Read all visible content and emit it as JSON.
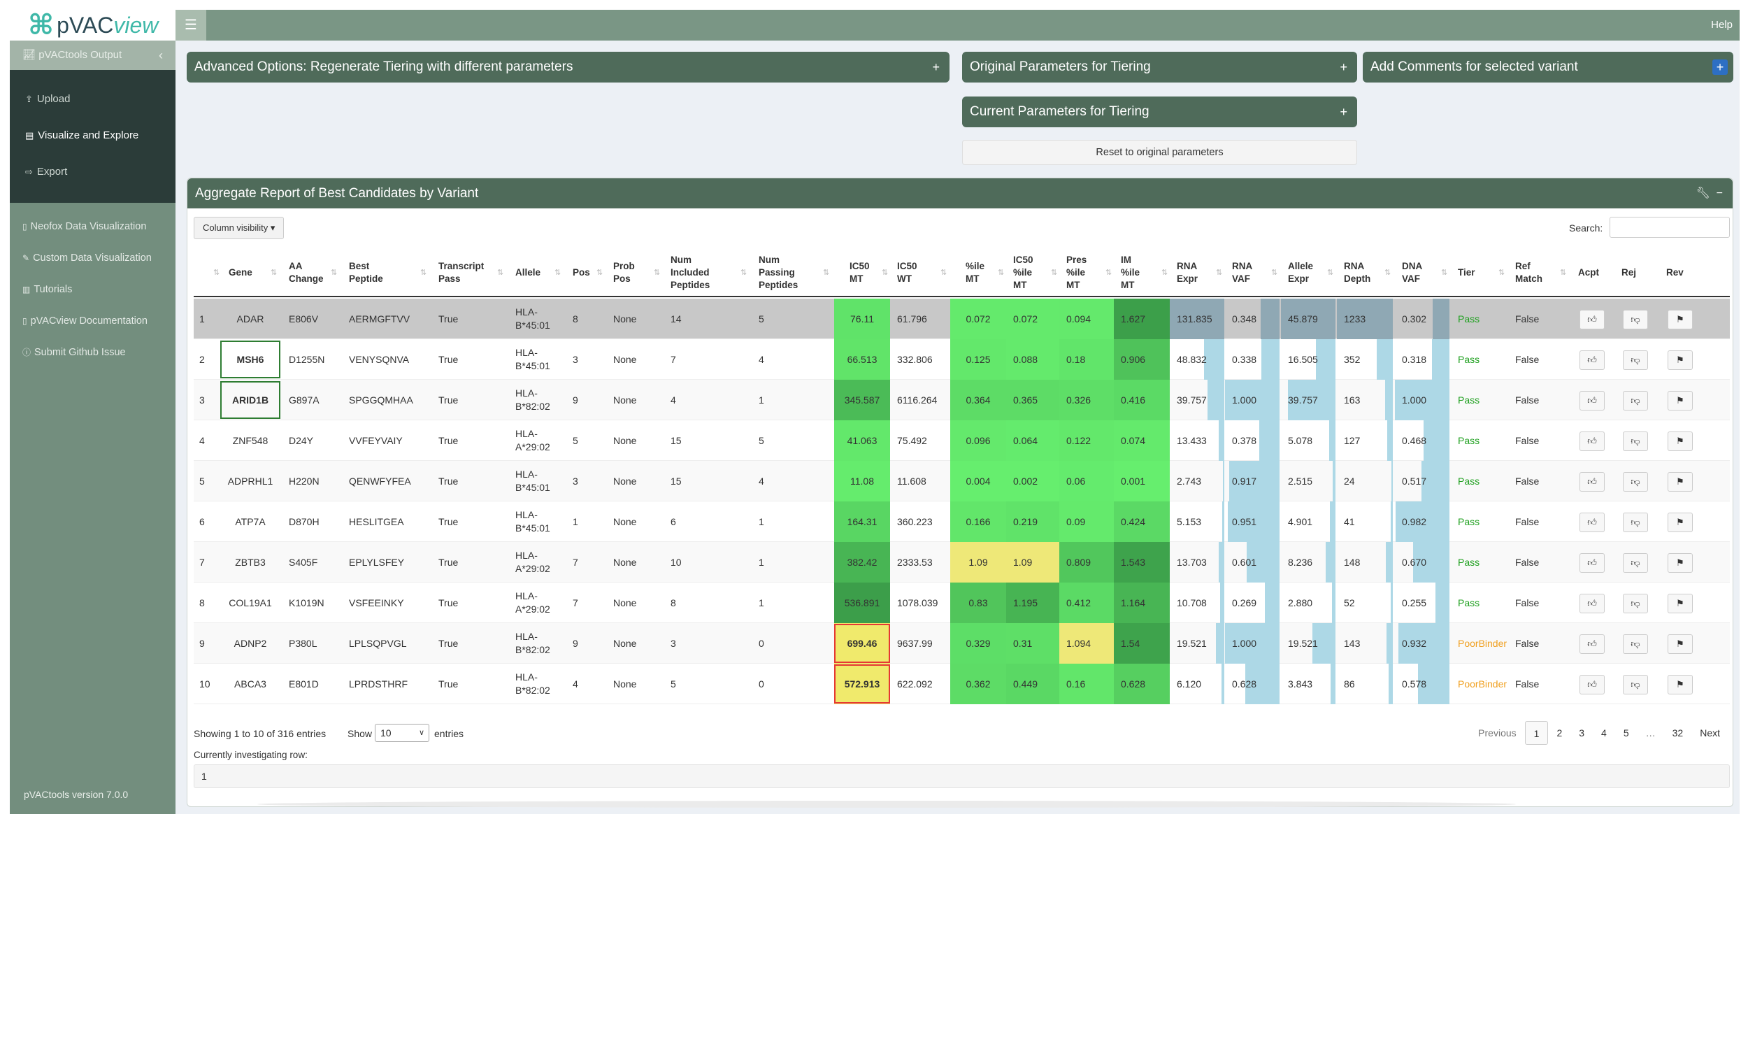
{
  "header": {
    "logo_prefix": "pVAC",
    "logo_suffix": "view",
    "help_label": "Help"
  },
  "sidebar": {
    "top_label": "pVACtools Output",
    "nav": [
      {
        "label": "Upload",
        "icon": "upload-icon"
      },
      {
        "label": "Visualize and Explore",
        "icon": "table-icon"
      },
      {
        "label": "Export",
        "icon": "export-icon"
      }
    ],
    "links": [
      {
        "label": "Neofox Data Visualization",
        "icon": "file-icon"
      },
      {
        "label": "Custom Data Visualization",
        "icon": "edit-icon"
      },
      {
        "label": "Tutorials",
        "icon": "book-icon"
      },
      {
        "label": "pVACview Documentation",
        "icon": "file-icon"
      },
      {
        "label": "Submit Github Issue",
        "icon": "question-icon"
      }
    ],
    "version": "pVACtools version 7.0.0"
  },
  "panels": {
    "advanced": "Advanced Options: Regenerate Tiering with different parameters",
    "original": "Original Parameters for Tiering",
    "comments": "Add Comments for selected variant",
    "current": "Current Parameters for Tiering",
    "reset": "Reset to original parameters"
  },
  "aggregate": {
    "title": "Aggregate Report of Best Candidates by Variant",
    "column_visibility": "Column visibility",
    "search_label": "Search:",
    "columns": [
      [
        "",
        ""
      ],
      [
        "Gene",
        ""
      ],
      [
        "AA",
        "Change"
      ],
      [
        "Best",
        "Peptide"
      ],
      [
        "Transcript",
        "Pass"
      ],
      [
        "Allele",
        ""
      ],
      [
        "Pos",
        ""
      ],
      [
        "Prob",
        "Pos"
      ],
      [
        "Num",
        "Included",
        "Peptides"
      ],
      [
        "Num",
        "Passing",
        "Peptides"
      ],
      [
        "IC50",
        "MT"
      ],
      [
        "IC50",
        "WT"
      ],
      [
        "%ile",
        "MT"
      ],
      [
        "IC50",
        "%ile",
        "MT"
      ],
      [
        "Pres",
        "%ile",
        "MT"
      ],
      [
        "IM",
        "%ile",
        "MT"
      ],
      [
        "RNA",
        "Expr"
      ],
      [
        "RNA",
        "VAF"
      ],
      [
        "Allele",
        "Expr"
      ],
      [
        "RNA",
        "Depth"
      ],
      [
        "DNA",
        "VAF"
      ],
      [
        "Tier"
      ],
      [
        "Ref",
        "Match"
      ],
      [
        "Acpt"
      ],
      [
        "Rej"
      ],
      [
        "Rev"
      ]
    ],
    "rows": [
      [
        "1",
        "ADAR",
        "E806V",
        "AERMGFTVV",
        "True",
        "HLA-\nB*45:01",
        "8",
        "None",
        "14",
        "5",
        "76.11",
        "61.796",
        "0.072",
        "0.072",
        "0.094",
        "1.627",
        "131.835",
        "0.348",
        "45.879",
        "1233",
        "0.302",
        "Pass",
        "False"
      ],
      [
        "2",
        "MSH6",
        "D1255N",
        "VENYSQNVA",
        "True",
        "HLA-\nB*45:01",
        "3",
        "None",
        "7",
        "4",
        "66.513",
        "332.806",
        "0.125",
        "0.088",
        "0.18",
        "0.906",
        "48.832",
        "0.338",
        "16.505",
        "352",
        "0.318",
        "Pass",
        "False"
      ],
      [
        "3",
        "ARID1B",
        "G897A",
        "SPGGQMHAA",
        "True",
        "HLA-\nB*82:02",
        "9",
        "None",
        "4",
        "1",
        "345.587",
        "6116.264",
        "0.364",
        "0.365",
        "0.326",
        "0.416",
        "39.757",
        "1.000",
        "39.757",
        "163",
        "1.000",
        "Pass",
        "False"
      ],
      [
        "4",
        "ZNF548",
        "D24Y",
        "VVFEYVAIY",
        "True",
        "HLA-\nA*29:02",
        "5",
        "None",
        "15",
        "5",
        "41.063",
        "75.492",
        "0.096",
        "0.064",
        "0.122",
        "0.074",
        "13.433",
        "0.378",
        "5.078",
        "127",
        "0.468",
        "Pass",
        "False"
      ],
      [
        "5",
        "ADPRHL1",
        "H220N",
        "QENWFYFEA",
        "True",
        "HLA-\nB*45:01",
        "3",
        "None",
        "15",
        "4",
        "11.08",
        "11.608",
        "0.004",
        "0.002",
        "0.06",
        "0.001",
        "2.743",
        "0.917",
        "2.515",
        "24",
        "0.517",
        "Pass",
        "False"
      ],
      [
        "6",
        "ATP7A",
        "D870H",
        "HESLITGEA",
        "True",
        "HLA-\nB*45:01",
        "1",
        "None",
        "6",
        "1",
        "164.31",
        "360.223",
        "0.166",
        "0.219",
        "0.09",
        "0.424",
        "5.153",
        "0.951",
        "4.901",
        "41",
        "0.982",
        "Pass",
        "False"
      ],
      [
        "7",
        "ZBTB3",
        "S405F",
        "EPLYLSFEY",
        "True",
        "HLA-\nA*29:02",
        "7",
        "None",
        "10",
        "1",
        "382.42",
        "2333.53",
        "1.09",
        "1.09",
        "0.809",
        "1.543",
        "13.703",
        "0.601",
        "8.236",
        "148",
        "0.670",
        "Pass",
        "False"
      ],
      [
        "8",
        "COL19A1",
        "K1019N",
        "VSFEEINKY",
        "True",
        "HLA-\nA*29:02",
        "7",
        "None",
        "8",
        "1",
        "536.891",
        "1078.039",
        "0.83",
        "1.195",
        "0.412",
        "1.164",
        "10.708",
        "0.269",
        "2.880",
        "52",
        "0.255",
        "Pass",
        "False"
      ],
      [
        "9",
        "ADNP2",
        "P380L",
        "LPLSQPVGL",
        "True",
        "HLA-\nB*82:02",
        "9",
        "None",
        "3",
        "0",
        "699.46",
        "9637.99",
        "0.329",
        "0.31",
        "1.094",
        "1.54",
        "19.521",
        "1.000",
        "19.521",
        "143",
        "0.932",
        "PoorBinder",
        "False"
      ],
      [
        "10",
        "ABCA3",
        "E801D",
        "LPRDSTHRF",
        "True",
        "HLA-\nB*82:02",
        "4",
        "None",
        "5",
        "0",
        "572.913",
        "622.092",
        "0.362",
        "0.449",
        "0.16",
        "0.628",
        "6.120",
        "0.628",
        "3.843",
        "86",
        "0.578",
        "PoorBinder",
        "False"
      ]
    ],
    "footer": {
      "showing": "Showing 1 to 10 of 316 entries",
      "show_label": "Show",
      "show_value": "10",
      "entries_label": "entries",
      "pages": [
        "Previous",
        "1",
        "2",
        "3",
        "4",
        "5",
        "…",
        "32",
        "Next"
      ],
      "investigating_label": "Currently investigating row:",
      "investigating_value": "1"
    }
  },
  "colors": {
    "header_bg": "#7a9685",
    "sidebar_bg": "#738e7e",
    "sidebar_dark": "#2b3c39",
    "panel_header": "#4f6b5a",
    "pass": "#1fa01f",
    "poor_binder": "#f0a020",
    "bar": "#add8e6",
    "selected_row": "#c8c8c8"
  }
}
